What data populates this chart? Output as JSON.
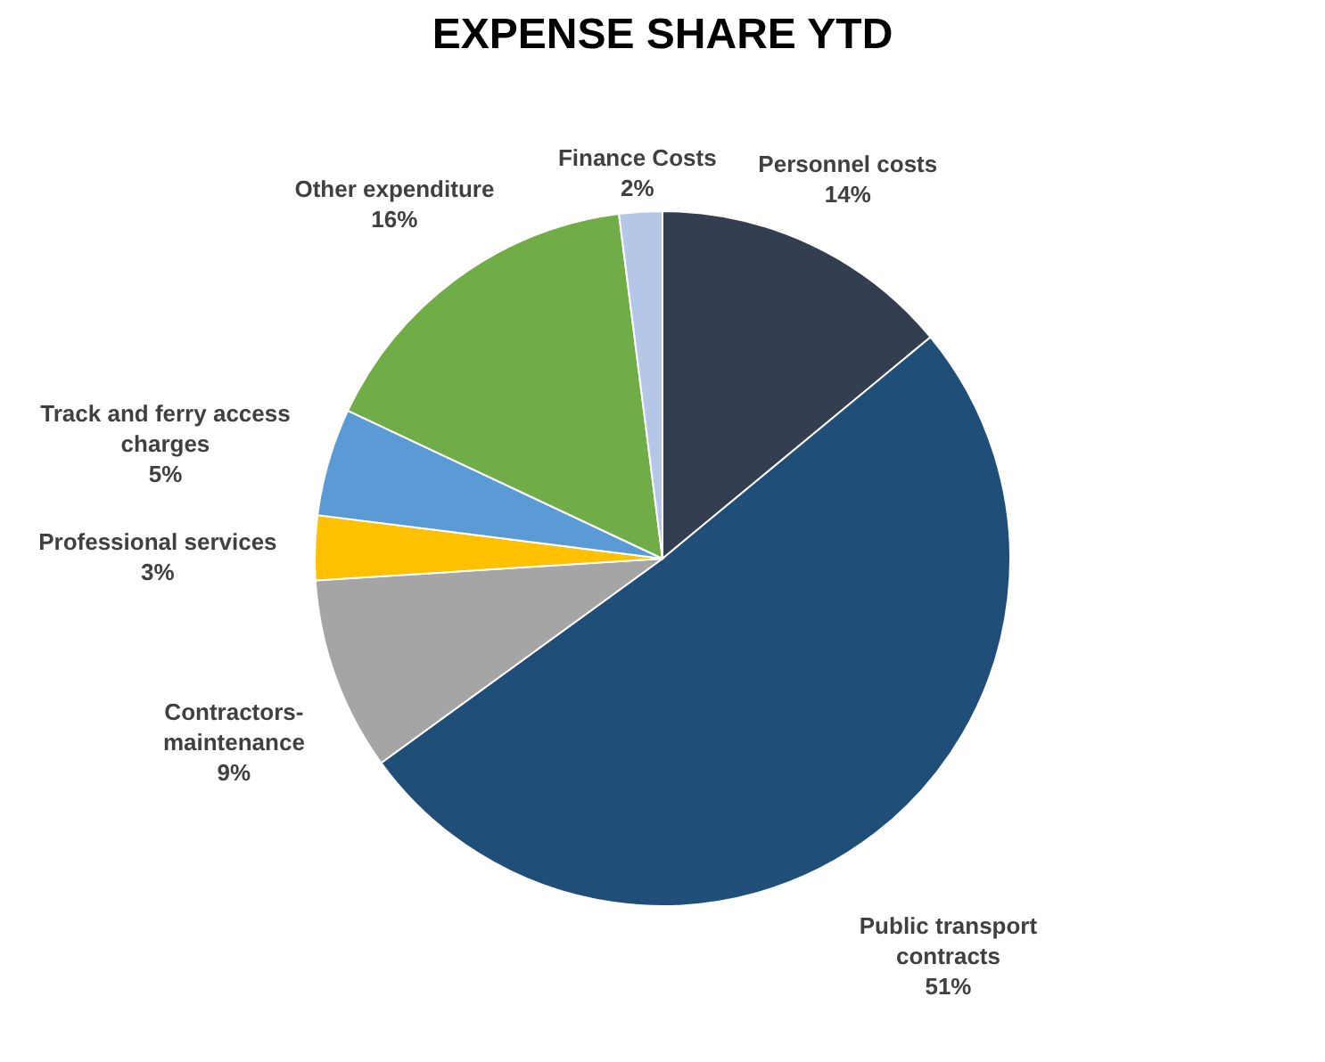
{
  "chart_data": {
    "type": "pie",
    "title": "EXPENSE SHARE YTD",
    "categories": [
      "Personnel costs",
      "Public transport contracts",
      "Contractors-maintenance",
      "Professional services",
      "Track and ferry access charges",
      "Other expenditure",
      "Finance Costs"
    ],
    "values": [
      14,
      51,
      9,
      3,
      5,
      16,
      2
    ],
    "value_labels": [
      "14%",
      "51%",
      "9%",
      "3%",
      "5%",
      "16%",
      "2%"
    ],
    "colors": [
      "#333f50",
      "#1f4e79",
      "#a5a5a5",
      "#ffc000",
      "#5b9bd5",
      "#70ad47",
      "#b4c7e7"
    ],
    "legend": false
  }
}
